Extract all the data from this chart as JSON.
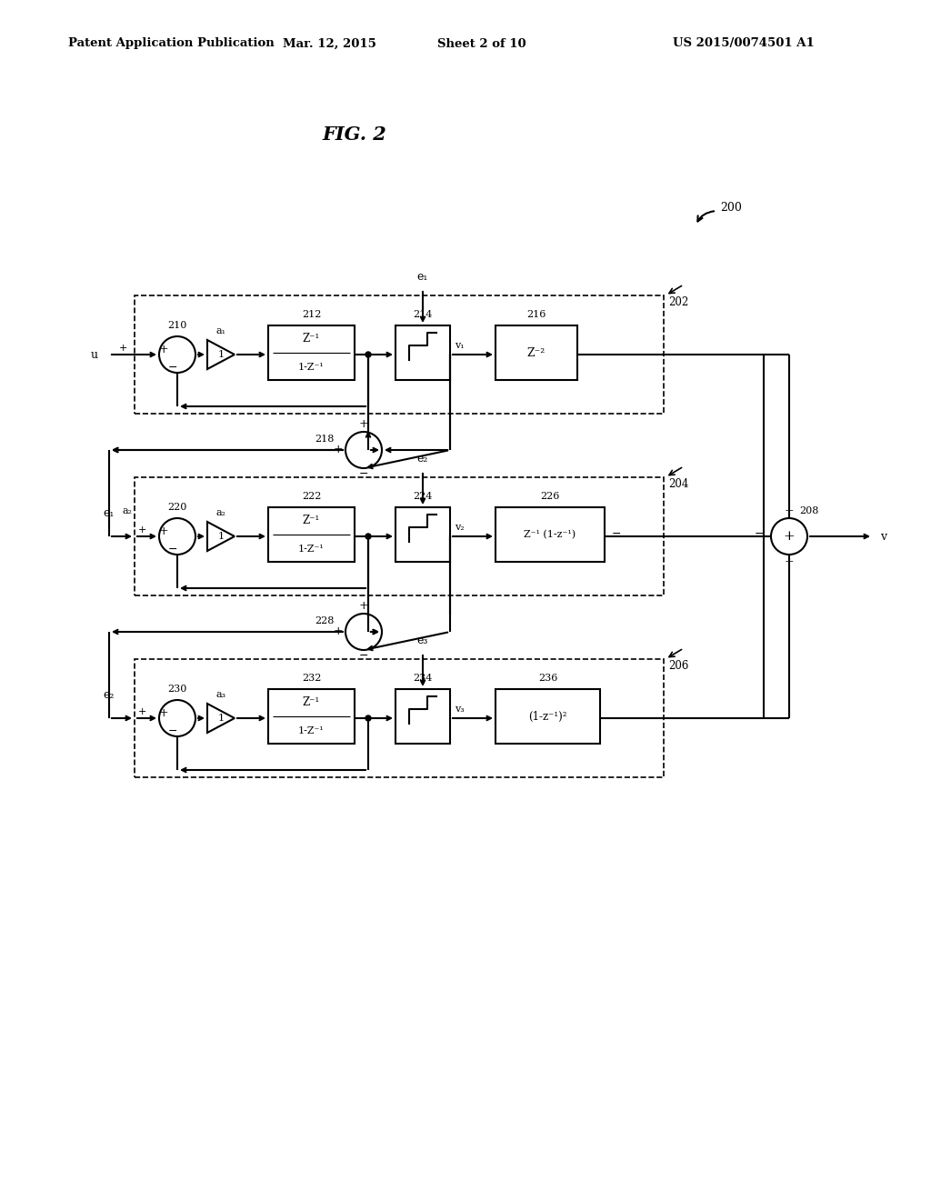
{
  "patent_header": "Patent Application Publication",
  "patent_date": "Mar. 12, 2015",
  "patent_sheet": "Sheet 2 of 10",
  "patent_number": "US 2015/0074501 A1",
  "background_color": "#ffffff"
}
